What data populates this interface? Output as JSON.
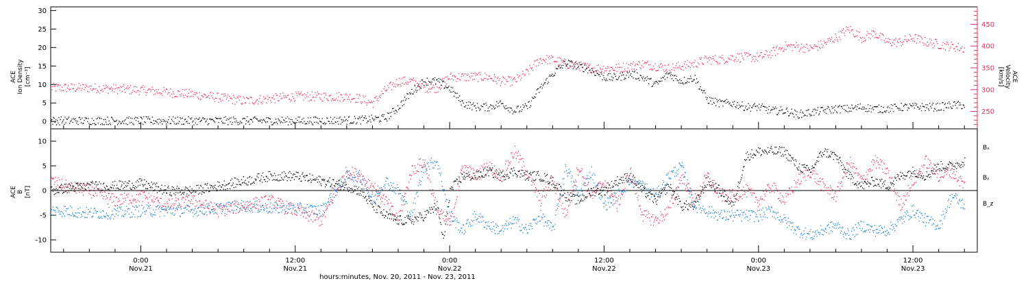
{
  "colors": {
    "density": "#000000",
    "velocity": "#e8305a",
    "bx": "#000000",
    "by": "#1a7fd6",
    "bz": "#e8305a"
  },
  "chart_data": [
    {
      "type": "scatter",
      "panel": "top",
      "ylabel_left": [
        "ACE",
        "Ion Density",
        "[cm⁻³]"
      ],
      "ylabel_right": [
        "ACE",
        "Velocity",
        "[km/s]"
      ],
      "ylim_left": [
        -2,
        31
      ],
      "ylim_right": [
        210,
        490
      ],
      "yticks_left": [
        "0",
        "5",
        "10",
        "15",
        "20",
        "25",
        "30"
      ],
      "yticks_right": [
        "250",
        "300",
        "350",
        "400",
        "450"
      ],
      "x_unit": "hours since Nov.20 00:00",
      "xlim": [
        17,
        89
      ],
      "series": [
        {
          "name": "Ion Density",
          "axis": "left",
          "x": [
            17,
            22,
            27,
            32,
            37,
            41,
            43,
            44,
            45,
            46,
            47,
            48,
            49,
            50,
            51,
            52,
            53,
            54,
            55,
            56,
            57,
            58,
            59,
            60,
            61,
            62,
            63,
            64,
            65,
            66,
            67,
            68,
            69,
            70,
            71,
            72,
            73,
            74,
            75,
            76,
            77,
            78,
            79,
            80,
            81,
            82,
            83,
            84,
            85,
            86,
            87,
            88
          ],
          "y": [
            0.3,
            0.3,
            0.3,
            0.3,
            0.3,
            0.5,
            1,
            4,
            8,
            11,
            11,
            9,
            5,
            4,
            4,
            5,
            3,
            4,
            9,
            13,
            16,
            15,
            14,
            12,
            12,
            13,
            12,
            10,
            13,
            11,
            12,
            6,
            5,
            5,
            4,
            4,
            3,
            3,
            2,
            2.5,
            3,
            3.5,
            3.5,
            4,
            3.5,
            3.5,
            4,
            4,
            4,
            4,
            4.5,
            4.5
          ]
        },
        {
          "name": "Velocity",
          "axis": "right",
          "x": [
            17,
            20,
            24,
            28,
            32,
            36,
            40,
            41,
            42,
            43,
            44,
            45,
            46,
            47,
            48,
            49,
            50,
            51,
            52,
            53,
            54,
            55,
            56,
            57,
            58,
            59,
            60,
            61,
            62,
            63,
            64,
            65,
            66,
            67,
            68,
            69,
            70,
            71,
            72,
            73,
            74,
            75,
            76,
            77,
            78,
            79,
            80,
            81,
            82,
            83,
            84,
            85,
            86,
            87,
            88
          ],
          "y": [
            305,
            305,
            300,
            290,
            275,
            285,
            285,
            280,
            270,
            300,
            320,
            320,
            305,
            305,
            330,
            330,
            330,
            330,
            320,
            320,
            340,
            370,
            370,
            360,
            355,
            350,
            350,
            350,
            355,
            360,
            355,
            350,
            355,
            360,
            370,
            370,
            375,
            375,
            375,
            385,
            400,
            400,
            395,
            405,
            420,
            440,
            420,
            430,
            410,
            410,
            420,
            410,
            405,
            400,
            395
          ]
        }
      ]
    },
    {
      "type": "scatter",
      "panel": "bottom",
      "ylabel_left": [
        "ACE",
        "B",
        "[nT]"
      ],
      "ylim": [
        -12.5,
        12.5
      ],
      "yticks": [
        "-10",
        "-5",
        "0",
        "5",
        "10"
      ],
      "x_unit": "hours since Nov.20 00:00",
      "xlim": [
        17,
        89
      ],
      "legend": [
        "Bₓ",
        "Bᵧ",
        "B_z"
      ],
      "series": [
        {
          "name": "Bₓ",
          "x": [
            17,
            18,
            20,
            22,
            24,
            26,
            28,
            30,
            32,
            34,
            36,
            38,
            40,
            41,
            42,
            43,
            44,
            45,
            46,
            47,
            47.5,
            48,
            49,
            50,
            51,
            52,
            53,
            54,
            55,
            56,
            57,
            58,
            59,
            60,
            61,
            62,
            63,
            64,
            65,
            66,
            67,
            68,
            69,
            70,
            71,
            72,
            73,
            74,
            75,
            76,
            77,
            78,
            79,
            80,
            81,
            82,
            83,
            84,
            85,
            86,
            87,
            88
          ],
          "y": [
            0,
            0.5,
            1,
            1,
            1.5,
            0,
            0,
            1,
            2,
            3,
            3,
            2,
            1,
            0,
            -3,
            -5,
            -6,
            -6,
            -5,
            -3,
            -10,
            0,
            3,
            3,
            4,
            3,
            4,
            3,
            3,
            2,
            -1,
            -2,
            0,
            0,
            2,
            3,
            0,
            -2,
            1,
            -3,
            -3,
            2,
            0,
            -3,
            7,
            8,
            8,
            8,
            5,
            4,
            8,
            7,
            3,
            1,
            2,
            1,
            3,
            4,
            3,
            5,
            5,
            6
          ]
        },
        {
          "name": "Bᵧ",
          "x": [
            17,
            18,
            20,
            22,
            24,
            26,
            28,
            30,
            32,
            34,
            36,
            38,
            40,
            41,
            42,
            43,
            44,
            45,
            46,
            47,
            48,
            49,
            50,
            51,
            52,
            53,
            54,
            55,
            56,
            57,
            58,
            59,
            60,
            61,
            62,
            63,
            64,
            65,
            66,
            67,
            68,
            69,
            70,
            71,
            72,
            73,
            74,
            75,
            76,
            77,
            78,
            79,
            80,
            81,
            82,
            83,
            84,
            85,
            86,
            87,
            88
          ],
          "y": [
            -4,
            -4,
            -4.5,
            -4.5,
            -4,
            -4,
            -4,
            -3.5,
            -3,
            -3.5,
            -3.5,
            -4,
            3,
            3,
            -2,
            2,
            0,
            -5,
            5,
            6,
            -5,
            -8,
            -5,
            -7,
            -8,
            -6,
            -8,
            -5,
            -8,
            5,
            -1,
            4,
            -3,
            -1,
            2,
            1,
            -1,
            3,
            5,
            -3,
            -4,
            -5,
            -5,
            -5,
            -5,
            -4,
            -6,
            -8,
            -9,
            -8,
            -7,
            -9,
            -7,
            -8,
            -8,
            -6,
            -4,
            -6,
            -7,
            -1,
            -3
          ]
        },
        {
          "name": "B_z",
          "x": [
            17,
            18,
            20,
            22,
            24,
            26,
            28,
            30,
            32,
            34,
            36,
            38,
            40,
            41,
            42,
            43,
            44,
            45,
            46,
            47,
            48,
            49,
            50,
            51,
            52,
            53,
            54,
            55,
            56,
            57,
            58,
            59,
            60,
            61,
            62,
            63,
            64,
            65,
            66,
            67,
            68,
            69,
            70,
            71,
            72,
            73,
            74,
            75,
            76,
            77,
            78,
            79,
            80,
            81,
            82,
            83,
            84,
            85,
            86,
            87,
            88
          ],
          "y": [
            2,
            1,
            0,
            -2,
            -1,
            -3,
            -2,
            -4,
            -3,
            -2,
            -4,
            -6,
            4,
            3,
            1,
            -2,
            -6,
            4,
            6,
            -4,
            -7,
            5,
            3,
            5,
            3,
            8,
            4,
            -2,
            2,
            -5,
            5,
            -1,
            2,
            -3,
            4,
            -5,
            -6,
            -4,
            3,
            -2,
            3,
            -1,
            -1,
            0,
            -2,
            1,
            -2,
            2,
            4,
            1,
            -1,
            6,
            2,
            6,
            4,
            -3,
            2,
            6,
            3,
            4,
            1
          ]
        }
      ]
    }
  ],
  "x_ticks": [
    {
      "hour": 24,
      "time": "0:00",
      "date": "Nov.21"
    },
    {
      "hour": 36,
      "time": "12:00",
      "date": "Nov.21"
    },
    {
      "hour": 48,
      "time": "0:00",
      "date": "Nov.22"
    },
    {
      "hour": 60,
      "time": "12:00",
      "date": "Nov.22"
    },
    {
      "hour": 72,
      "time": "0:00",
      "date": "Nov.23"
    },
    {
      "hour": 84,
      "time": "12:00",
      "date": "Nov.23"
    }
  ],
  "xlabel": "hours:minutes, Nov. 20, 2011 - Nov. 23, 2011"
}
